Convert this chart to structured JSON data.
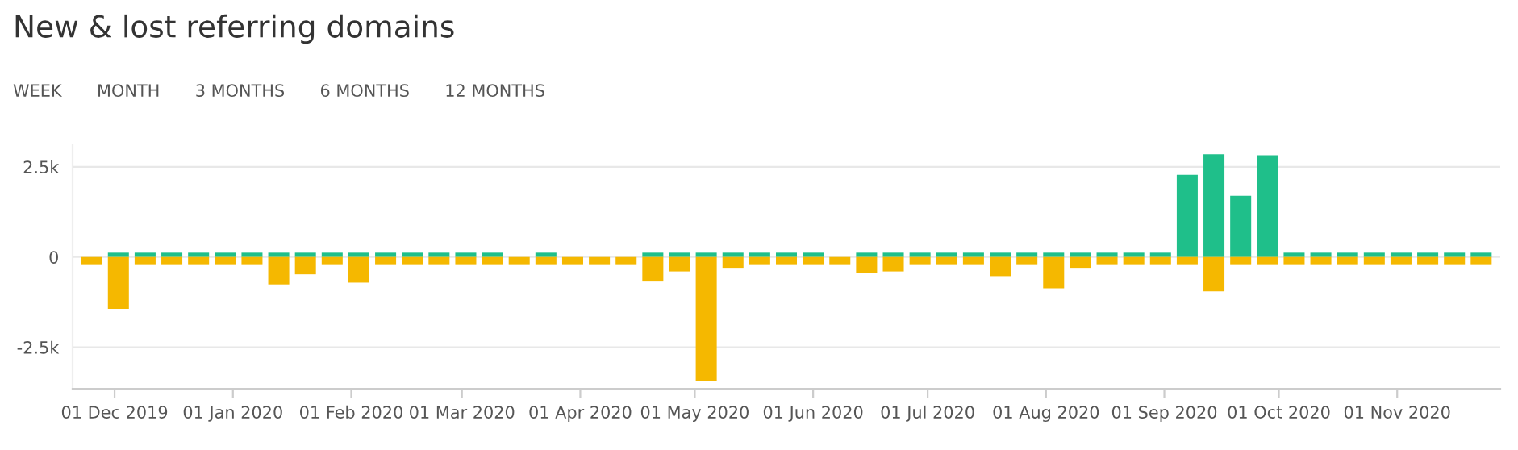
{
  "chart_data": {
    "type": "bar",
    "title": "New & lost referring domains",
    "annotations": [
      "WEEK",
      "MONTH",
      "3 MONTHS",
      "6 MONTHS",
      "12 MONTHS"
    ],
    "x": [
      "2019-11-25",
      "2019-12-02",
      "2019-12-09",
      "2019-12-16",
      "2019-12-23",
      "2019-12-30",
      "2020-01-06",
      "2020-01-13",
      "2020-01-20",
      "2020-01-27",
      "2020-02-03",
      "2020-02-10",
      "2020-02-17",
      "2020-02-24",
      "2020-03-02",
      "2020-03-09",
      "2020-03-16",
      "2020-03-23",
      "2020-03-30",
      "2020-04-06",
      "2020-04-13",
      "2020-04-20",
      "2020-04-27",
      "2020-05-04",
      "2020-05-11",
      "2020-05-18",
      "2020-05-25",
      "2020-06-01",
      "2020-06-08",
      "2020-06-15",
      "2020-06-22",
      "2020-06-29",
      "2020-07-06",
      "2020-07-13",
      "2020-07-20",
      "2020-07-27",
      "2020-08-03",
      "2020-08-10",
      "2020-08-17",
      "2020-08-24",
      "2020-08-31",
      "2020-09-07",
      "2020-09-14",
      "2020-09-21",
      "2020-09-28",
      "2020-10-05",
      "2020-10-12",
      "2020-10-19",
      "2020-10-26",
      "2020-11-02",
      "2020-11-09",
      "2020-11-16",
      "2020-11-23"
    ],
    "series": [
      {
        "color": "#1fbf8a",
        "values": [
          0,
          120,
          120,
          120,
          120,
          120,
          120,
          120,
          120,
          120,
          120,
          120,
          120,
          120,
          120,
          120,
          0,
          120,
          0,
          0,
          0,
          120,
          120,
          120,
          120,
          120,
          120,
          120,
          0,
          120,
          120,
          120,
          120,
          120,
          120,
          120,
          120,
          120,
          120,
          120,
          120,
          2280,
          2850,
          1700,
          2820,
          120,
          120,
          120,
          120,
          120,
          120,
          120,
          120
        ]
      },
      {
        "color": "#f5b800",
        "values": [
          -200,
          -1440,
          -200,
          -200,
          -200,
          -200,
          -200,
          -760,
          -480,
          -200,
          -710,
          -200,
          -200,
          -200,
          -200,
          -200,
          -200,
          -200,
          -200,
          -200,
          -200,
          -680,
          -400,
          -3440,
          -300,
          -200,
          -200,
          -200,
          -200,
          -450,
          -400,
          -200,
          -200,
          -200,
          -530,
          -200,
          -870,
          -300,
          -200,
          -200,
          -200,
          -200,
          -950,
          -200,
          -200,
          -200,
          -200,
          -200,
          -200,
          -200,
          -200,
          -200,
          -200
        ]
      }
    ],
    "ylim": [
      -3650,
      3100
    ],
    "yticks": [
      {
        "value": -2500,
        "label": "-2.5k"
      },
      0,
      {
        "value": 2500,
        "label": "2.5k"
      }
    ],
    "xlim": [
      "2019-11-20",
      "2020-11-28"
    ],
    "xticks": [
      {
        "value": "2019-12-01",
        "label": "01 Dec 2019"
      },
      {
        "value": "2020-01-01",
        "label": "01 Jan 2020"
      },
      {
        "value": "2020-02-01",
        "label": "01 Feb 2020"
      },
      {
        "value": "2020-03-01",
        "label": "01 Mar 2020"
      },
      {
        "value": "2020-04-01",
        "label": "01 Apr 2020"
      },
      {
        "value": "2020-05-01",
        "label": "01 May 2020"
      },
      {
        "value": "2020-06-01",
        "label": "01 Jun 2020"
      },
      {
        "value": "2020-07-01",
        "label": "01 Jul 2020"
      },
      {
        "value": "2020-08-01",
        "label": "01 Aug 2020"
      },
      {
        "value": "2020-09-01",
        "label": "01 Sep 2020"
      },
      {
        "value": "2020-10-01",
        "label": "01 Oct 2020"
      },
      {
        "value": "2020-11-01",
        "label": "01 Nov 2020"
      }
    ],
    "stacked": true,
    "grid": "y"
  }
}
